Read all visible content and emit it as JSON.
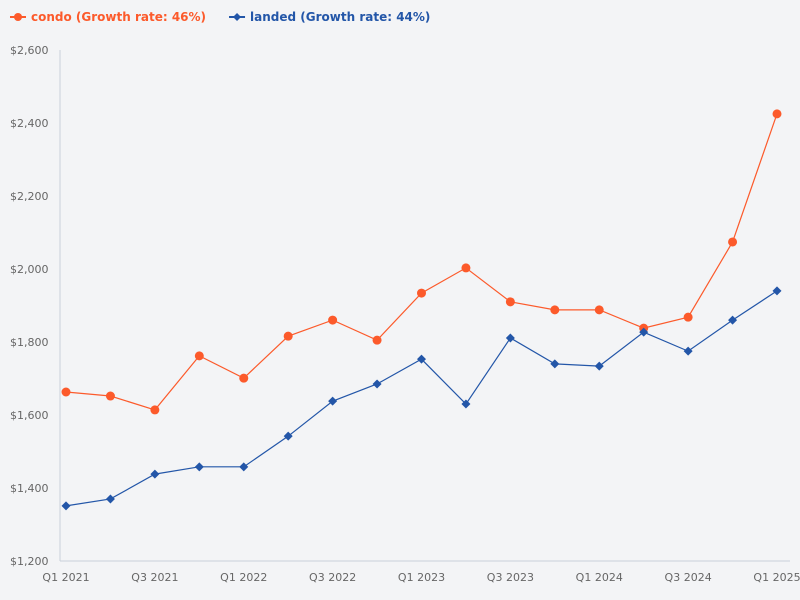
{
  "chart_data": {
    "type": "line",
    "title": "",
    "xlabel": "",
    "ylabel": "",
    "categories": [
      "Q1 2021",
      "Q2 2021",
      "Q3 2021",
      "Q4 2021",
      "Q1 2022",
      "Q2 2022",
      "Q3 2022",
      "Q4 2022",
      "Q1 2023",
      "Q2 2023",
      "Q3 2023",
      "Q4 2023",
      "Q1 2024",
      "Q2 2024",
      "Q3 2024",
      "Q4 2024",
      "Q1 2025"
    ],
    "x_tick_labels": [
      "Q1 2021",
      "Q3 2021",
      "Q1 2022",
      "Q3 2022",
      "Q1 2023",
      "Q3 2023",
      "Q1 2024",
      "Q3 2024",
      "Q1 2025"
    ],
    "ylim": [
      1200,
      2600
    ],
    "y_ticks": [
      1200,
      1400,
      1600,
      1800,
      2000,
      2200,
      2400,
      2600
    ],
    "y_tick_labels": [
      "$1,200",
      "$1,400",
      "$1,600",
      "$1,800",
      "$2,000",
      "$2,200",
      "$2,400",
      "$2,600"
    ],
    "grid": false,
    "legend_placement": "top-left",
    "series": [
      {
        "name": "condo (Growth rate: 46%)",
        "color": "#fc5a2b",
        "marker": "circle",
        "values": [
          1663,
          1652,
          1614,
          1762,
          1701,
          1816,
          1860,
          1805,
          1934,
          2003,
          1910,
          1888,
          1888,
          1838,
          1868,
          2074,
          2425
        ]
      },
      {
        "name": "landed (Growth rate: 44%)",
        "color": "#2356a8",
        "marker": "diamond",
        "values": [
          1351,
          1370,
          1438,
          1458,
          1458,
          1542,
          1638,
          1685,
          1753,
          1630,
          1811,
          1740,
          1734,
          1827,
          1775,
          1860,
          1940
        ]
      }
    ]
  }
}
